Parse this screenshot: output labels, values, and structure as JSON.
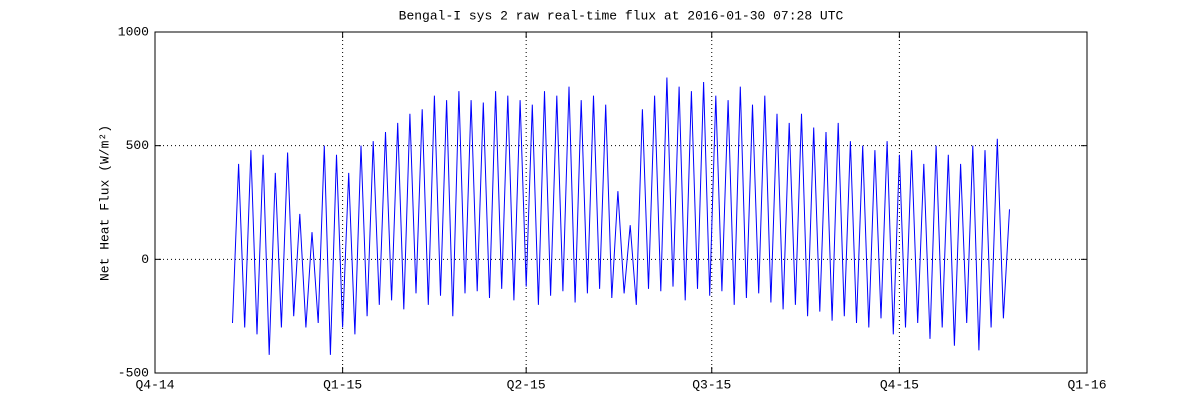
{
  "chart_data": {
    "type": "line",
    "title": "Bengal-I sys 2 raw real-time flux at 2016-01-30 07:28 UTC",
    "y_label": "Net Heat Flux (W/m²)",
    "x": [
      38,
      41,
      44,
      47,
      50,
      53,
      56,
      59,
      62,
      65,
      68,
      71,
      74,
      77,
      80,
      83,
      86,
      89,
      92,
      95,
      98,
      101,
      104,
      107,
      110,
      113,
      116,
      119,
      122,
      125,
      128,
      131,
      134,
      137,
      140,
      143,
      146,
      149,
      152,
      155,
      158,
      161,
      164,
      167,
      170,
      173,
      176,
      179,
      182,
      185,
      188,
      191,
      194,
      197,
      200,
      203,
      206,
      209,
      212,
      215,
      218,
      221,
      224,
      227,
      230,
      233,
      236,
      239,
      242,
      245,
      248,
      251,
      254,
      257,
      260,
      263,
      266,
      269,
      272,
      275,
      278,
      281,
      284,
      287,
      290,
      293,
      296,
      299,
      302,
      305,
      308,
      311,
      314,
      317,
      320,
      323,
      326,
      329,
      332,
      335,
      338,
      341,
      344,
      347,
      350,
      353,
      356,
      359,
      362,
      365,
      368,
      371,
      374,
      377,
      380,
      383,
      386,
      389,
      392,
      395,
      398,
      401,
      404,
      407,
      410,
      413,
      416,
      419
    ],
    "values": [
      -280,
      420,
      -300,
      480,
      -330,
      460,
      -420,
      380,
      -300,
      470,
      -250,
      200,
      -300,
      120,
      -280,
      500,
      -420,
      460,
      -300,
      380,
      -330,
      500,
      -250,
      520,
      -200,
      560,
      -180,
      600,
      -220,
      640,
      -150,
      660,
      -200,
      720,
      -160,
      700,
      -250,
      740,
      -150,
      700,
      -140,
      690,
      -170,
      740,
      -130,
      720,
      -180,
      700,
      -120,
      680,
      -200,
      740,
      -160,
      720,
      -140,
      760,
      -190,
      700,
      -150,
      720,
      -130,
      680,
      -170,
      300,
      -150,
      150,
      -200,
      660,
      -130,
      720,
      -140,
      800,
      -120,
      760,
      -180,
      740,
      -130,
      780,
      -160,
      720,
      -140,
      700,
      -200,
      760,
      -170,
      680,
      -150,
      720,
      -190,
      640,
      -220,
      600,
      -200,
      640,
      -250,
      580,
      -230,
      560,
      -270,
      600,
      -250,
      520,
      -280,
      500,
      -300,
      480,
      -260,
      520,
      -330,
      460,
      -300,
      480,
      -280,
      420,
      -350,
      500,
      -300,
      460,
      -380,
      420,
      -280,
      500,
      -400,
      480,
      -300,
      530,
      -260,
      220
    ],
    "color": "#0000ff",
    "xlim": [
      0,
      457
    ],
    "xticks": [
      {
        "value": 0,
        "label": "Q4-14"
      },
      {
        "value": 92,
        "label": "Q1-15"
      },
      {
        "value": 182,
        "label": "Q2-15"
      },
      {
        "value": 273,
        "label": "Q3-15"
      },
      {
        "value": 365,
        "label": "Q4-15"
      },
      {
        "value": 457,
        "label": "Q1-16"
      }
    ],
    "ylim": [
      -500,
      1000
    ],
    "yticks": [
      -500,
      0,
      500,
      1000
    ],
    "grid": true
  }
}
